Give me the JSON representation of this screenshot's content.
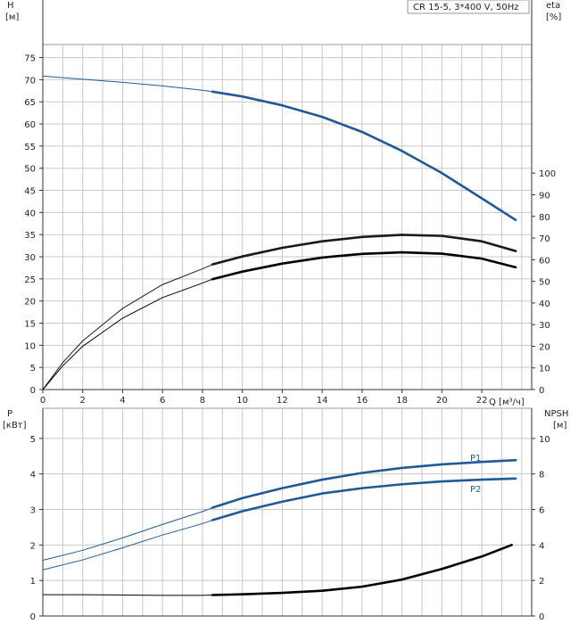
{
  "chart_data": [
    {
      "type": "line",
      "title_box": "CR 15-5, 3*400 V, 50Hz",
      "ylabel": "H",
      "yunit": "[м]",
      "y2label": "eta",
      "y2unit": "[%]",
      "xlabel": "Q [м³/ч]",
      "xlim": [
        0,
        24.5
      ],
      "ylim": [
        0,
        88
      ],
      "y2ticks": [
        0,
        10,
        20,
        30,
        40,
        50,
        60,
        70,
        80,
        90,
        100
      ],
      "xticks": [
        0,
        2,
        4,
        6,
        8,
        10,
        12,
        14,
        16,
        18,
        20,
        22
      ],
      "yticks": [
        0,
        5,
        10,
        15,
        20,
        25,
        30,
        35,
        40,
        45,
        50,
        55,
        60,
        65,
        70,
        75
      ],
      "grid": true,
      "series": [
        {
          "axis": "left",
          "color": "#1f5a96",
          "points": [
            [
              0,
              70.8
            ],
            [
              2,
              70.1
            ],
            [
              4,
              69.4
            ],
            [
              6,
              68.6
            ],
            [
              8,
              67.6
            ],
            [
              8.5,
              67.3
            ],
            [
              10,
              66.2
            ],
            [
              12,
              64.2
            ],
            [
              14,
              61.6
            ],
            [
              16,
              58.2
            ],
            [
              18,
              53.9
            ],
            [
              20,
              48.9
            ],
            [
              22,
              43.2
            ],
            [
              23.7,
              38.3
            ]
          ],
          "bold_from": 8.5
        },
        {
          "axis": "right",
          "color": "#1a1a1a",
          "points": [
            [
              0,
              0
            ],
            [
              1,
              12.5
            ],
            [
              2,
              22.5
            ],
            [
              4,
              37.5
            ],
            [
              6,
              48.5
            ],
            [
              8,
              55.8
            ],
            [
              8.5,
              57.8
            ],
            [
              10,
              61.5
            ],
            [
              12,
              65.5
            ],
            [
              14,
              68.5
            ],
            [
              16,
              70.5
            ],
            [
              18,
              71.5
            ],
            [
              20,
              71
            ],
            [
              22,
              68.5
            ],
            [
              23.7,
              64
            ]
          ],
          "bold_from": 8.5
        },
        {
          "axis": "right",
          "color": "#000000",
          "points": [
            [
              0,
              0
            ],
            [
              1,
              11
            ],
            [
              2,
              20
            ],
            [
              4,
              33
            ],
            [
              6,
              42.5
            ],
            [
              8,
              49.2
            ],
            [
              8.5,
              51
            ],
            [
              10,
              54.5
            ],
            [
              12,
              58.2
            ],
            [
              14,
              61
            ],
            [
              16,
              62.7
            ],
            [
              18,
              63.4
            ],
            [
              20,
              62.8
            ],
            [
              22,
              60.5
            ],
            [
              23.7,
              56.5
            ]
          ],
          "bold_from": 8.5
        }
      ]
    },
    {
      "type": "line",
      "ylabel": "P",
      "yunit": "[кВт]",
      "y2label": "NPSH",
      "y2unit": "[м]",
      "xlim": [
        0,
        24.5
      ],
      "ylim": [
        0,
        5.85
      ],
      "yticks": [
        0,
        1,
        2,
        3,
        4,
        5
      ],
      "y2ticks": [
        0,
        2,
        4,
        6,
        8,
        10
      ],
      "grid": true,
      "series": [
        {
          "name": "P1",
          "axis": "left",
          "color": "#1f5a96",
          "points": [
            [
              0,
              1.57
            ],
            [
              2,
              1.85
            ],
            [
              4,
              2.2
            ],
            [
              6,
              2.58
            ],
            [
              8,
              2.94
            ],
            [
              8.5,
              3.05
            ],
            [
              10,
              3.32
            ],
            [
              12,
              3.6
            ],
            [
              14,
              3.84
            ],
            [
              16,
              4.03
            ],
            [
              18,
              4.17
            ],
            [
              20,
              4.27
            ],
            [
              22,
              4.34
            ],
            [
              23.7,
              4.39
            ]
          ],
          "bold_from": 8.5
        },
        {
          "name": "P2",
          "axis": "left",
          "color": "#1f5a96",
          "points": [
            [
              0,
              1.3
            ],
            [
              2,
              1.58
            ],
            [
              4,
              1.92
            ],
            [
              6,
              2.28
            ],
            [
              8,
              2.6
            ],
            [
              8.5,
              2.7
            ],
            [
              10,
              2.95
            ],
            [
              12,
              3.22
            ],
            [
              14,
              3.45
            ],
            [
              16,
              3.6
            ],
            [
              18,
              3.71
            ],
            [
              20,
              3.79
            ],
            [
              22,
              3.84
            ],
            [
              23.7,
              3.87
            ]
          ],
          "bold_from": 8.5
        },
        {
          "name": "NPSH",
          "axis": "right",
          "color": "#000000",
          "points": [
            [
              0,
              1.2
            ],
            [
              2,
              1.2
            ],
            [
              4,
              1.18
            ],
            [
              6,
              1.16
            ],
            [
              8,
              1.16
            ],
            [
              8.5,
              1.18
            ],
            [
              10,
              1.22
            ],
            [
              12,
              1.3
            ],
            [
              14,
              1.42
            ],
            [
              16,
              1.65
            ],
            [
              18,
              2.05
            ],
            [
              20,
              2.65
            ],
            [
              22,
              3.35
            ],
            [
              23.5,
              4
            ]
          ],
          "bold_from": 8.5
        }
      ]
    }
  ]
}
